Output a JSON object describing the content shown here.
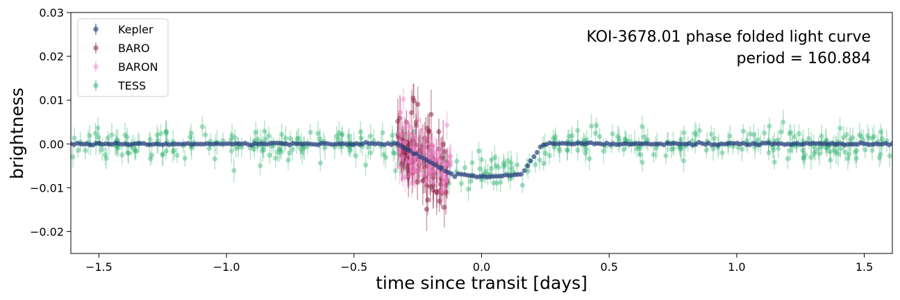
{
  "chart_data": {
    "type": "scatter",
    "title": "",
    "xlabel": "time since transit [days]",
    "ylabel": "brightness",
    "xlim": [
      -1.61,
      1.61
    ],
    "ylim": [
      -0.025,
      0.03
    ],
    "grid": false,
    "legend_placement": "top-left",
    "x_ticks": [
      -1.5,
      -1.0,
      -0.5,
      0.0,
      0.5,
      1.0,
      1.5
    ],
    "x_tick_labels": [
      "−1.5",
      "−1.0",
      "−0.5",
      "0.0",
      "0.5",
      "1.0",
      "1.5"
    ],
    "y_ticks": [
      -0.02,
      -0.01,
      0.0,
      0.01,
      0.02,
      0.03
    ],
    "y_tick_labels": [
      "−0.02",
      "−0.01",
      "0.00",
      "0.01",
      "0.02",
      "0.03"
    ],
    "annotations": [
      "KOI-3678.01 phase folded light curve",
      "period = 160.884"
    ],
    "series": [
      {
        "name": "Kepler",
        "color": "#1f3a7a",
        "marker": "circle with error bars",
        "transit_model": {
          "ingress_start": -0.33,
          "ingress_end": -0.1,
          "egress_start": 0.15,
          "egress_end": 0.24,
          "baseline": 0.0,
          "depth": -0.0075
        },
        "x_range": [
          -1.61,
          1.61
        ],
        "approx_point_count": 260,
        "typical_error": 0.0004
      },
      {
        "name": "BARO",
        "color": "#8a1c3c",
        "marker": "circle with error bars",
        "x_range": [
          -0.33,
          -0.13
        ],
        "approx_point_count": 110,
        "y_range": [
          -0.017,
          0.01
        ],
        "typical_error": 0.004
      },
      {
        "name": "BARON",
        "color": "#f080c8",
        "marker": "circle with error bars",
        "x_range": [
          -0.33,
          -0.12
        ],
        "approx_point_count": 90,
        "y_range": [
          -0.02,
          0.008
        ],
        "typical_error": 0.003
      },
      {
        "name": "TESS",
        "color": "#3cb878",
        "marker": "circle with error bars",
        "x_range": [
          -1.61,
          1.61
        ],
        "approx_point_count": 420,
        "scatter_sigma": 0.0018,
        "typical_error": 0.0022
      }
    ]
  }
}
